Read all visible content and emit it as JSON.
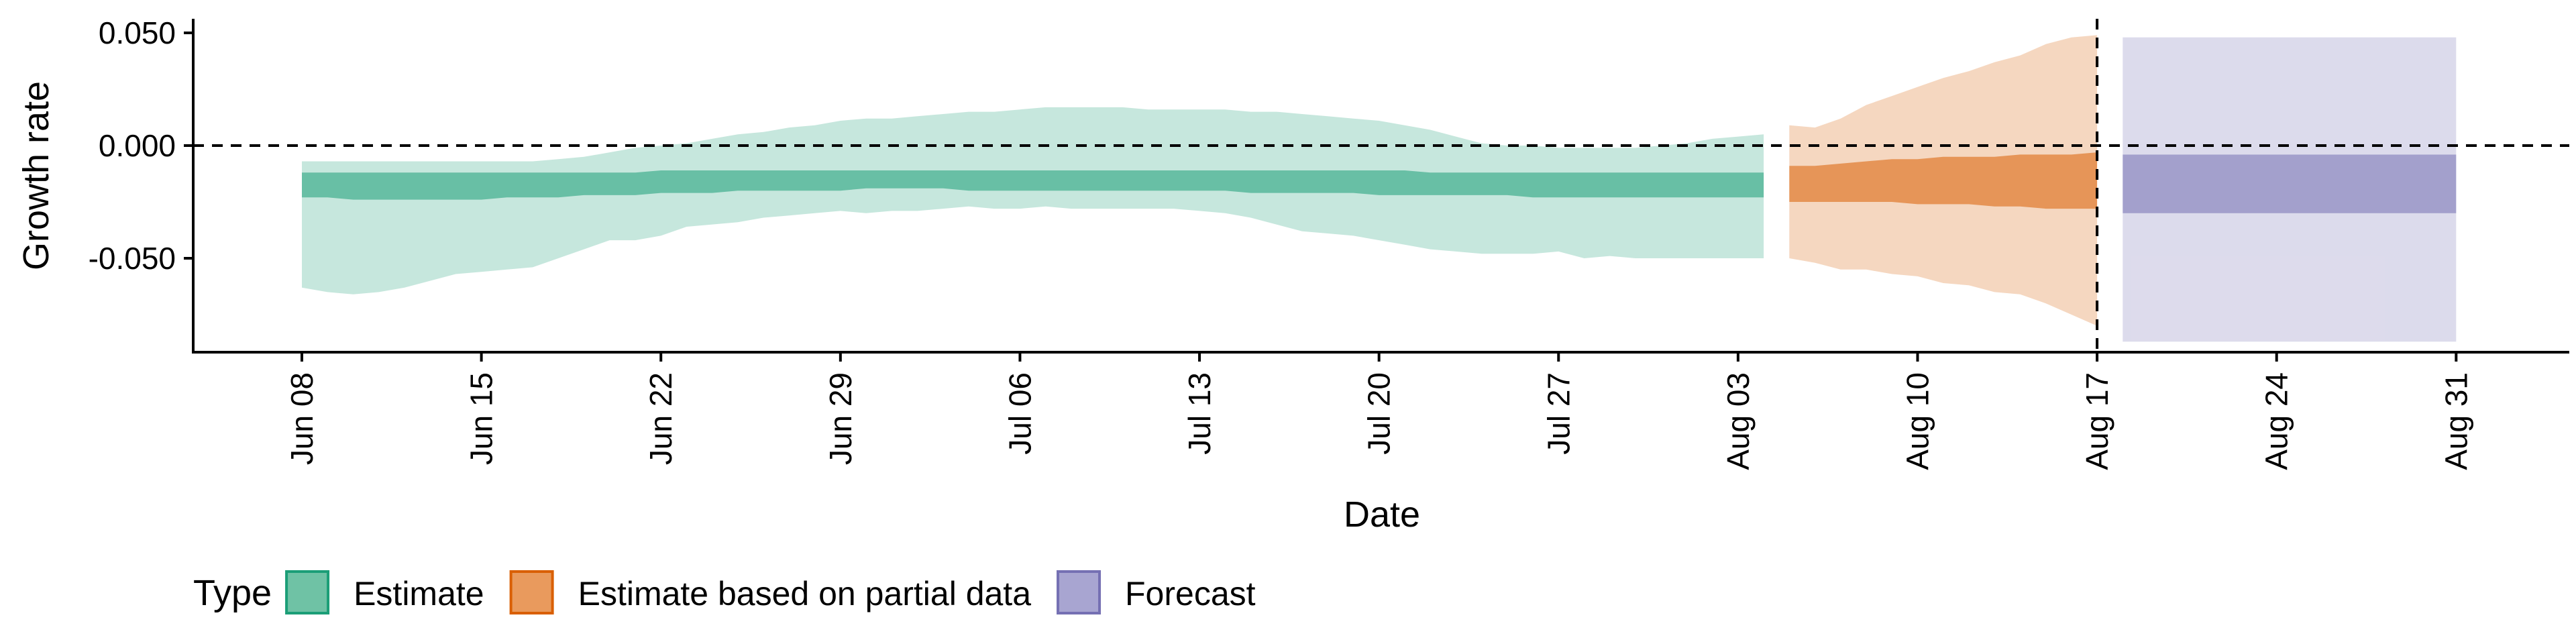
{
  "chart_data": {
    "type": "area",
    "xlabel": "Date",
    "ylabel": "Growth rate",
    "ylim": [
      -0.093,
      0.055
    ],
    "yticks": [
      0.05,
      0.0,
      -0.05
    ],
    "ytick_labels": [
      "0.050",
      "0.000",
      "-0.050"
    ],
    "reference_line_y": 0.0,
    "forecast_start_line": "2020-08-17",
    "x_start": "2020-06-08",
    "x_end": "2020-08-31",
    "xticks": [
      {
        "date": "2020-06-08",
        "label": "Jun 08"
      },
      {
        "date": "2020-06-15",
        "label": "Jun 15"
      },
      {
        "date": "2020-06-22",
        "label": "Jun 22"
      },
      {
        "date": "2020-06-29",
        "label": "Jun 29"
      },
      {
        "date": "2020-07-06",
        "label": "Jul 06"
      },
      {
        "date": "2020-07-13",
        "label": "Jul 13"
      },
      {
        "date": "2020-07-20",
        "label": "Jul 20"
      },
      {
        "date": "2020-07-27",
        "label": "Jul 27"
      },
      {
        "date": "2020-08-03",
        "label": "Aug 03"
      },
      {
        "date": "2020-08-10",
        "label": "Aug 10"
      },
      {
        "date": "2020-08-17",
        "label": "Aug 17"
      },
      {
        "date": "2020-08-24",
        "label": "Aug 24"
      },
      {
        "date": "2020-08-31",
        "label": "Aug 31"
      }
    ],
    "legend": {
      "title": "Type",
      "position": "bottom-left",
      "items": [
        {
          "name": "Estimate",
          "fill": "#6fc2a5",
          "stroke": "#1b9e77"
        },
        {
          "name": "Estimate based on partial data",
          "fill": "#e99a5d",
          "stroke": "#d95f02"
        },
        {
          "name": "Forecast",
          "fill": "#a8a5d1",
          "stroke": "#7570b3"
        }
      ]
    },
    "series": [
      {
        "name": "Estimate",
        "color": "#1b9e77",
        "start_date": "2020-06-08",
        "lower90": [
          -0.063,
          -0.065,
          -0.066,
          -0.065,
          -0.063,
          -0.06,
          -0.057,
          -0.056,
          -0.055,
          -0.054,
          -0.05,
          -0.046,
          -0.042,
          -0.042,
          -0.04,
          -0.036,
          -0.035,
          -0.034,
          -0.032,
          -0.031,
          -0.03,
          -0.029,
          -0.03,
          -0.029,
          -0.029,
          -0.028,
          -0.027,
          -0.028,
          -0.028,
          -0.027,
          -0.028,
          -0.028,
          -0.028,
          -0.028,
          -0.028,
          -0.029,
          -0.03,
          -0.032,
          -0.035,
          -0.038,
          -0.039,
          -0.04,
          -0.042,
          -0.044,
          -0.046,
          -0.047,
          -0.048,
          -0.048,
          -0.048,
          -0.047,
          -0.05,
          -0.049,
          -0.05,
          -0.05,
          -0.05,
          -0.05,
          -0.05,
          -0.05
        ],
        "lower50": [
          -0.023,
          -0.023,
          -0.024,
          -0.024,
          -0.024,
          -0.024,
          -0.024,
          -0.024,
          -0.023,
          -0.023,
          -0.023,
          -0.022,
          -0.022,
          -0.022,
          -0.021,
          -0.021,
          -0.021,
          -0.02,
          -0.02,
          -0.02,
          -0.02,
          -0.02,
          -0.019,
          -0.019,
          -0.019,
          -0.019,
          -0.02,
          -0.02,
          -0.02,
          -0.02,
          -0.02,
          -0.02,
          -0.02,
          -0.02,
          -0.02,
          -0.02,
          -0.02,
          -0.021,
          -0.021,
          -0.021,
          -0.021,
          -0.021,
          -0.022,
          -0.022,
          -0.022,
          -0.022,
          -0.022,
          -0.022,
          -0.023,
          -0.023,
          -0.023,
          -0.023,
          -0.023,
          -0.023,
          -0.023,
          -0.023,
          -0.023,
          -0.023
        ],
        "upper50": [
          -0.012,
          -0.012,
          -0.012,
          -0.012,
          -0.012,
          -0.012,
          -0.012,
          -0.012,
          -0.012,
          -0.012,
          -0.012,
          -0.012,
          -0.012,
          -0.012,
          -0.011,
          -0.011,
          -0.011,
          -0.011,
          -0.011,
          -0.011,
          -0.011,
          -0.011,
          -0.011,
          -0.011,
          -0.011,
          -0.011,
          -0.011,
          -0.011,
          -0.011,
          -0.011,
          -0.011,
          -0.011,
          -0.011,
          -0.011,
          -0.011,
          -0.011,
          -0.011,
          -0.011,
          -0.011,
          -0.011,
          -0.011,
          -0.011,
          -0.011,
          -0.011,
          -0.012,
          -0.012,
          -0.012,
          -0.012,
          -0.012,
          -0.012,
          -0.012,
          -0.012,
          -0.012,
          -0.012,
          -0.012,
          -0.012,
          -0.012,
          -0.012
        ],
        "upper90": [
          -0.007,
          -0.007,
          -0.007,
          -0.007,
          -0.007,
          -0.007,
          -0.007,
          -0.007,
          -0.007,
          -0.007,
          -0.006,
          -0.005,
          -0.003,
          -0.001,
          0.0,
          0.001,
          0.003,
          0.005,
          0.006,
          0.008,
          0.009,
          0.011,
          0.012,
          0.012,
          0.013,
          0.014,
          0.015,
          0.015,
          0.016,
          0.017,
          0.017,
          0.017,
          0.017,
          0.016,
          0.016,
          0.016,
          0.016,
          0.015,
          0.015,
          0.014,
          0.013,
          0.012,
          0.011,
          0.009,
          0.007,
          0.004,
          0.001,
          0.0,
          0.0,
          -0.001,
          -0.001,
          -0.001,
          -0.001,
          0.0,
          0.001,
          0.003,
          0.004,
          0.005
        ]
      },
      {
        "name": "Estimate based on partial data",
        "color": "#d95f02",
        "start_date": "2020-08-05",
        "lower90": [
          -0.05,
          -0.052,
          -0.055,
          -0.055,
          -0.057,
          -0.058,
          -0.061,
          -0.062,
          -0.065,
          -0.066,
          -0.07,
          -0.075,
          -0.08
        ],
        "lower50": [
          -0.025,
          -0.025,
          -0.025,
          -0.025,
          -0.025,
          -0.026,
          -0.026,
          -0.026,
          -0.027,
          -0.027,
          -0.028,
          -0.028,
          -0.028
        ],
        "upper50": [
          -0.009,
          -0.009,
          -0.008,
          -0.007,
          -0.006,
          -0.006,
          -0.005,
          -0.005,
          -0.005,
          -0.004,
          -0.004,
          -0.004,
          -0.003
        ],
        "upper90": [
          0.009,
          0.008,
          0.012,
          0.018,
          0.022,
          0.026,
          0.03,
          0.033,
          0.037,
          0.04,
          0.045,
          0.048,
          0.049
        ]
      },
      {
        "name": "Forecast",
        "color": "#7570b3",
        "start_date": "2020-08-18",
        "end_date": "2020-08-31",
        "lower90": -0.087,
        "lower50": -0.03,
        "upper50": -0.004,
        "upper90": 0.048
      }
    ]
  }
}
